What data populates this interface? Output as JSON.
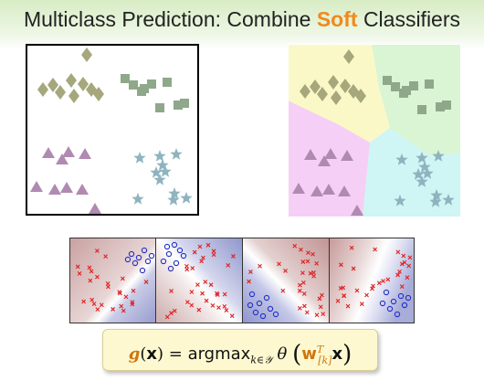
{
  "title": {
    "prefix": "Multiclass Prediction: Combine",
    "highlight": "Soft",
    "suffix": "Classifiers"
  },
  "formula": {
    "lhs_func": "g",
    "lhs_arg": "x",
    "equals": "=",
    "op": "argmax",
    "op_sub": "k∈𝒴",
    "theta": "θ",
    "w": "w",
    "w_sup": "T",
    "w_sub": "[k]",
    "x": "x"
  },
  "colors": {
    "accent": "#f08a1c",
    "diamond": "#a6a77c",
    "square": "#8fa88a",
    "triangle": "#b08ab0",
    "star": "#8fb4bf",
    "region_yellow": "#fbf8c8",
    "region_green": "#d9f5d4",
    "region_magenta": "#f5cff5",
    "region_cyan": "#cff5f5",
    "cross": "#e02020",
    "circle": "#2030c8"
  },
  "icons": [
    "diamond-marker",
    "square-marker",
    "triangle-marker",
    "star-marker",
    "cross-marker",
    "circle-marker"
  ]
}
